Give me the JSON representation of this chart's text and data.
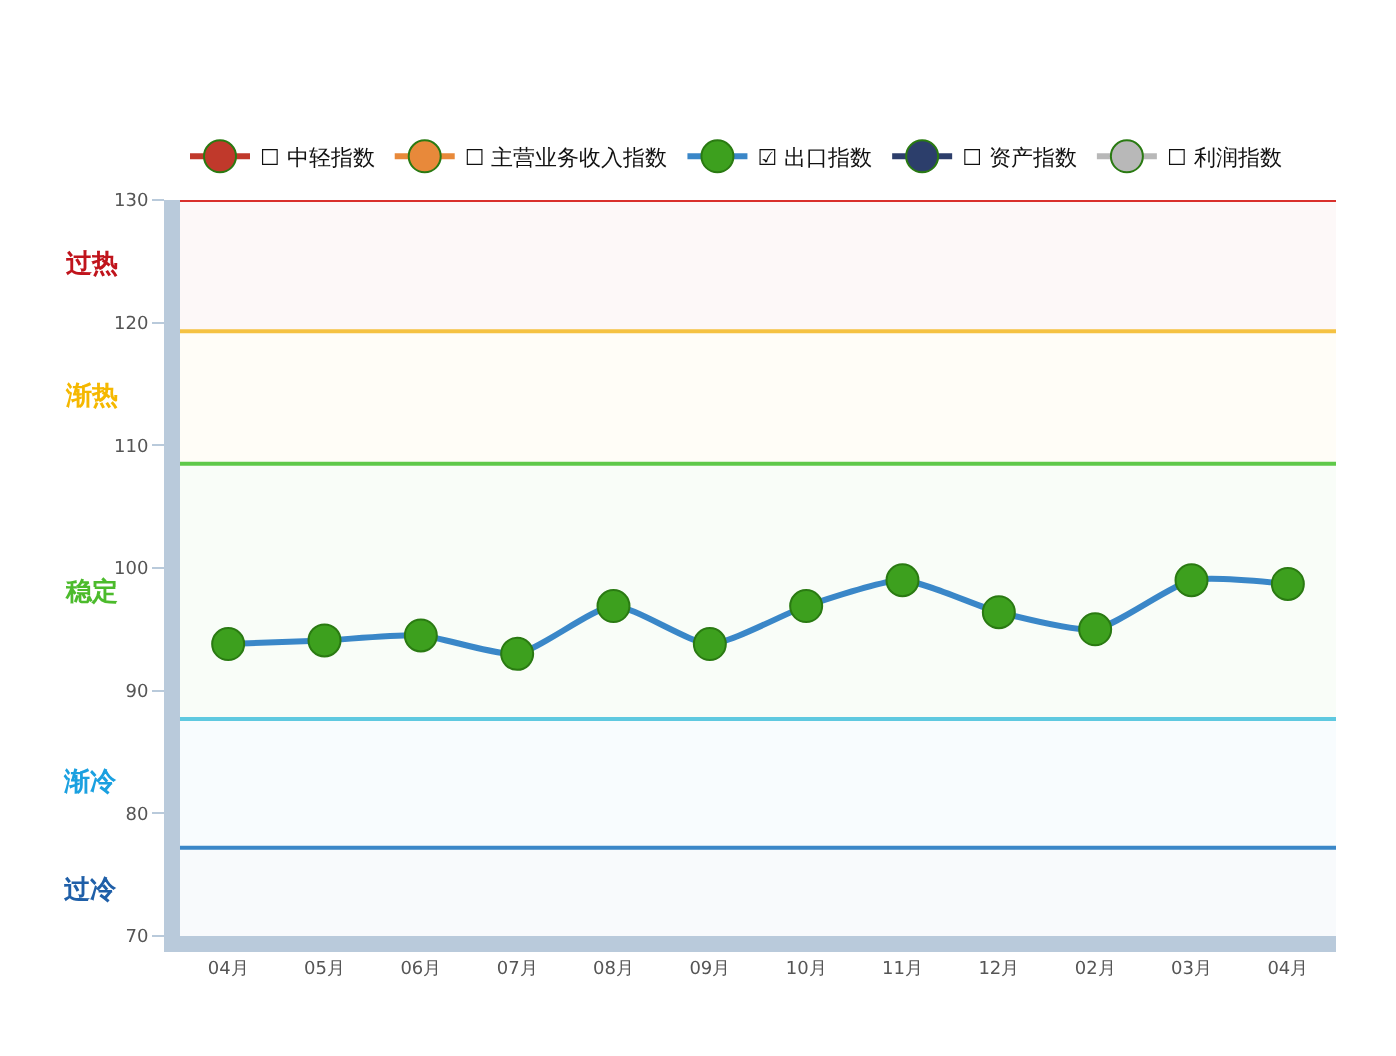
{
  "chart_data": {
    "type": "line",
    "categories": [
      "04月",
      "05月",
      "06月",
      "07月",
      "08月",
      "09月",
      "10月",
      "11月",
      "12月",
      "02月",
      "03月",
      "04月"
    ],
    "series": [
      {
        "name": "☐ 中轻指数",
        "color": "#c0392b",
        "values": [
          null,
          null,
          null,
          null,
          null,
          null,
          null,
          null,
          null,
          null,
          null,
          null
        ]
      },
      {
        "name": "☐ 主营业务收入指数",
        "color": "#e8893a",
        "values": [
          null,
          null,
          null,
          null,
          null,
          null,
          null,
          null,
          null,
          null,
          null,
          null
        ]
      },
      {
        "name": "☑ 出口指数",
        "color": "#3a87c8",
        "colors": [
          "#3da01e",
          "#3da01e",
          "#3da01e",
          "#3da01e",
          "#3da01e",
          "#3da01e",
          "#3da01e",
          "#3da01e",
          "#3da01e",
          "#3da01e",
          "#3da01e",
          "#3da01e"
        ],
        "values": [
          93.8,
          94.1,
          94.5,
          93.0,
          96.9,
          93.8,
          96.9,
          99.0,
          96.4,
          95.0,
          99.0,
          98.7
        ]
      },
      {
        "name": "☐ 资产指数",
        "color": "#2c3e6b",
        "values": [
          null,
          null,
          null,
          null,
          null,
          null,
          null,
          null,
          null,
          null,
          null,
          null
        ]
      },
      {
        "name": "☐ 利润指数",
        "color": "#b8b8b8",
        "values": [
          null,
          null,
          null,
          null,
          null,
          null,
          null,
          null,
          null,
          null,
          null,
          null
        ]
      }
    ],
    "ylim": [
      70,
      130
    ],
    "yticks": [
      70,
      80,
      90,
      100,
      110,
      120,
      130
    ],
    "ref_lines": [
      {
        "axis": "y",
        "value": 130,
        "color": "#d9302c"
      },
      {
        "axis": "y",
        "value": 119.3,
        "color": "#f5c242"
      },
      {
        "axis": "y",
        "value": 108.5,
        "color": "#5fc94a"
      },
      {
        "axis": "y",
        "value": 87.7,
        "color": "#5fc9e0"
      },
      {
        "axis": "y",
        "value": 77.2,
        "color": "#3a87c8"
      }
    ],
    "bands": [
      {
        "axis": "y",
        "from": 119.3,
        "to": 130,
        "label": "过热",
        "color": "#c0141c"
      },
      {
        "axis": "y",
        "from": 108.5,
        "to": 119.3,
        "label": "渐热",
        "color": "#f5b800"
      },
      {
        "axis": "y",
        "from": 87.7,
        "to": 108.5,
        "label": "稳定",
        "color": "#4cbb2c"
      },
      {
        "axis": "y",
        "from": 77.2,
        "to": 87.7,
        "label": "渐冷",
        "color": "#1aa0e0"
      },
      {
        "axis": "y",
        "from": 70,
        "to": 77.2,
        "label": "过冷",
        "color": "#1f5fa8"
      }
    ],
    "marker": "circle",
    "line_style": "solid",
    "grid": false,
    "legend": "top"
  }
}
